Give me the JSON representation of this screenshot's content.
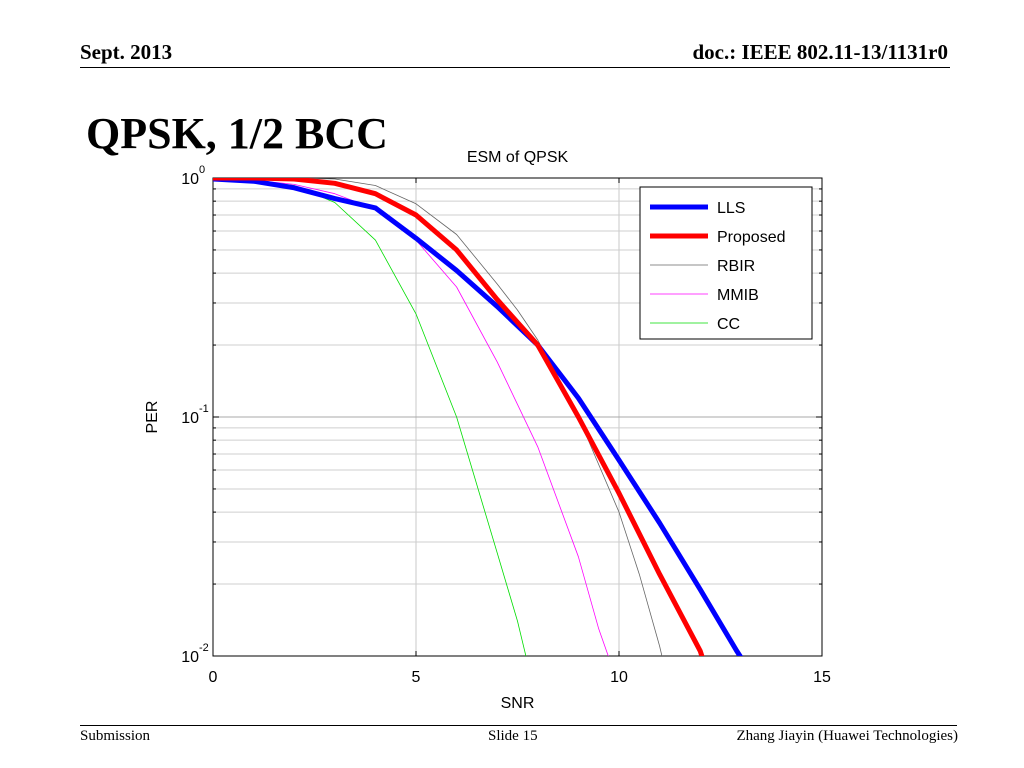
{
  "header": {
    "left": "Sept. 2013",
    "right": "doc.: IEEE 802.11-13/1131r0"
  },
  "slide_title": "QPSK, 1/2 BCC",
  "footer": {
    "left": "Submission",
    "center": "Slide 15",
    "right": "Zhang Jiayin (Huawei Technologies)"
  },
  "chart_data": {
    "type": "line",
    "title": "ESM of QPSK",
    "xlabel": "SNR",
    "ylabel": "PER",
    "xlim": [
      0,
      15
    ],
    "ylim": [
      0.01,
      1
    ],
    "yscale": "log",
    "xticks": [
      0,
      5,
      10,
      15
    ],
    "xtick_labels": [
      "0",
      "5",
      "10",
      "15"
    ],
    "yticks": [
      1,
      0.1,
      0.01
    ],
    "ytick_labels": [
      {
        "base": "10",
        "exp": "0"
      },
      {
        "base": "10",
        "exp": "-1"
      },
      {
        "base": "10",
        "exp": "-2"
      }
    ],
    "grid": true,
    "legend_position": "top-right",
    "series": [
      {
        "name": "LLS",
        "color": "#0000ff",
        "width": "thick",
        "x": [
          0,
          1,
          2,
          3,
          4,
          5,
          6,
          7,
          8,
          9,
          10,
          11,
          12,
          12.9,
          13.1
        ],
        "y": [
          0.99,
          0.97,
          0.91,
          0.82,
          0.75,
          0.56,
          0.41,
          0.29,
          0.2,
          0.12,
          0.066,
          0.036,
          0.019,
          0.0105,
          0.0093
        ]
      },
      {
        "name": "Proposed",
        "color": "#ff0000",
        "width": "thick",
        "x": [
          0,
          1,
          2,
          3,
          4,
          5,
          6,
          7,
          8,
          9,
          10,
          11,
          12,
          12.1
        ],
        "y": [
          1.0,
          1.0,
          0.99,
          0.95,
          0.86,
          0.7,
          0.5,
          0.31,
          0.2,
          0.1,
          0.048,
          0.022,
          0.0105,
          0.0093
        ]
      },
      {
        "name": "RBIR",
        "color": "#666666",
        "width": "thin",
        "x": [
          0,
          1,
          2,
          3,
          4,
          5,
          6,
          7,
          7.5,
          8,
          9,
          10,
          10.5,
          11,
          11.1
        ],
        "y": [
          1.0,
          1.0,
          1.0,
          0.99,
          0.93,
          0.78,
          0.58,
          0.36,
          0.28,
          0.21,
          0.1,
          0.04,
          0.022,
          0.011,
          0.0093
        ]
      },
      {
        "name": "MMIB",
        "color": "#ff00ff",
        "width": "thin",
        "x": [
          0,
          1,
          2,
          3,
          4,
          5,
          6,
          7,
          8,
          9,
          9.5,
          9.8
        ],
        "y": [
          1.0,
          0.98,
          0.94,
          0.86,
          0.74,
          0.55,
          0.35,
          0.17,
          0.075,
          0.026,
          0.013,
          0.0093
        ]
      },
      {
        "name": "CC",
        "color": "#00dd00",
        "width": "thin",
        "x": [
          0,
          1,
          2,
          3,
          4,
          5,
          6,
          7,
          7.5,
          7.75
        ],
        "y": [
          1.0,
          0.98,
          0.93,
          0.79,
          0.55,
          0.27,
          0.1,
          0.027,
          0.014,
          0.0093
        ]
      }
    ]
  }
}
